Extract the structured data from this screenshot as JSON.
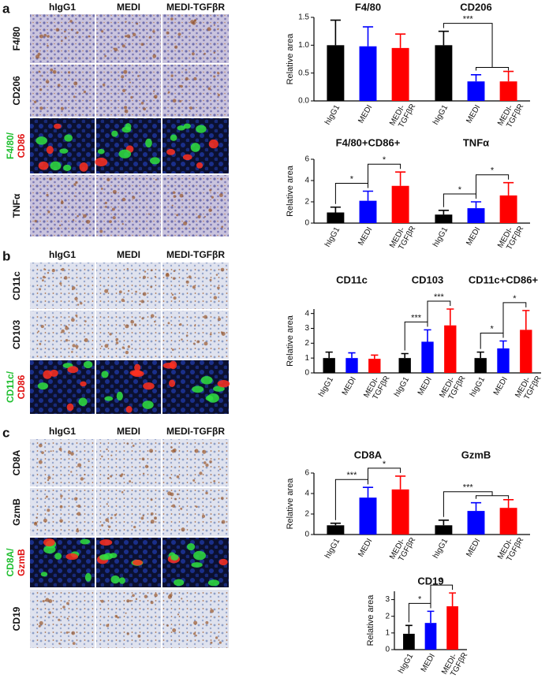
{
  "panels": [
    {
      "label": "a",
      "columns": [
        "hIgG1",
        "MEDI",
        "MEDI-TGFβR"
      ],
      "rows": [
        [
          "F4/80"
        ],
        [
          "CD206"
        ],
        [
          "F4/80/",
          "CD86"
        ],
        [
          "TNFα"
        ]
      ]
    },
    {
      "label": "b",
      "columns": [
        "hIgG1",
        "MEDI",
        "MEDI-TGFβR"
      ],
      "rows": [
        [
          "CD11c"
        ],
        [
          "CD103"
        ],
        [
          "CD11c/",
          "CD86"
        ]
      ]
    },
    {
      "label": "c",
      "columns": [
        "hIgG1",
        "MEDI",
        "MEDI-TGFβR"
      ],
      "rows": [
        [
          "CD8A"
        ],
        [
          "GzmB"
        ],
        [
          "CD8A/",
          "GzmB"
        ],
        [
          "CD19"
        ]
      ]
    }
  ],
  "chart_data": [
    {
      "type": "bar",
      "ylabel": "Relative area",
      "ylim": [
        0,
        1.5
      ],
      "yticks": [
        {
          "value": 0,
          "label": "0.0"
        },
        {
          "value": 0.5,
          "label": "0.5"
        },
        {
          "value": 1,
          "label": "1.0"
        },
        {
          "value": 1.5,
          "label": "1.5"
        }
      ],
      "categories": [
        "hIgG1",
        "MEDI",
        "MEDI-TGFβR"
      ],
      "colors": [
        "#000000",
        "#0000ff",
        "#ff0000"
      ],
      "groups": [
        {
          "title": "F4/80",
          "values": [
            1.0,
            0.98,
            0.95
          ],
          "errors": [
            0.45,
            0.35,
            0.25
          ],
          "annotations": []
        },
        {
          "title": "CD206",
          "values": [
            1.0,
            0.35,
            0.35
          ],
          "errors": [
            0.25,
            0.12,
            0.18
          ],
          "annotations": [
            {
              "label": "***",
              "from": 0,
              "to": [
                1,
                2
              ]
            }
          ]
        }
      ]
    },
    {
      "type": "bar",
      "ylabel": "Relative area",
      "ylim": [
        0,
        6
      ],
      "yticks": [
        0,
        2,
        4,
        6
      ],
      "categories": [
        "hIgG1",
        "MEDI",
        "MEDI-TGFβR"
      ],
      "colors": [
        "#000000",
        "#0000ff",
        "#ff0000"
      ],
      "groups": [
        {
          "title": "F4/80+CD86+",
          "values": [
            1.0,
            2.1,
            3.5
          ],
          "errors": [
            0.5,
            0.9,
            1.3
          ],
          "annotations": [
            {
              "label": "*",
              "from": 0,
              "to": 1
            },
            {
              "label": "*",
              "from": 1,
              "to": 2
            }
          ]
        },
        {
          "title": "TNFα",
          "values": [
            0.8,
            1.4,
            2.6
          ],
          "errors": [
            0.4,
            0.6,
            1.2
          ],
          "annotations": [
            {
              "label": "*",
              "from": 0,
              "to": 1
            },
            {
              "label": "*",
              "from": 1,
              "to": 2
            }
          ]
        }
      ]
    },
    {
      "type": "bar",
      "ylabel": "Relative area",
      "ylim": [
        0,
        4.3
      ],
      "yticks": [
        0,
        1,
        2,
        3,
        4
      ],
      "categories": [
        "hIgG1",
        "MEDI",
        "MEDI-TGFβR"
      ],
      "colors": [
        "#000000",
        "#0000ff",
        "#ff0000"
      ],
      "groups": [
        {
          "title": "CD11c",
          "values": [
            1.0,
            1.0,
            0.95
          ],
          "errors": [
            0.4,
            0.35,
            0.25
          ],
          "annotations": []
        },
        {
          "title": "CD103",
          "values": [
            1.0,
            2.1,
            3.2
          ],
          "errors": [
            0.3,
            0.8,
            1.1
          ],
          "annotations": [
            {
              "label": "***",
              "from": 0,
              "to": 1
            },
            {
              "label": "***",
              "from": 1,
              "to": 2
            }
          ]
        },
        {
          "title": "CD11c+CD86+",
          "values": [
            1.0,
            1.65,
            2.9
          ],
          "errors": [
            0.4,
            0.5,
            1.3
          ],
          "annotations": [
            {
              "label": "*",
              "from": 0,
              "to": 1
            },
            {
              "label": "*",
              "from": 1,
              "to": 2
            }
          ]
        }
      ]
    },
    {
      "type": "bar",
      "ylabel": "Relative area",
      "ylim": [
        0,
        6
      ],
      "yticks": [
        0,
        2,
        4,
        6
      ],
      "categories": [
        "hIgG1",
        "MEDI",
        "MEDI-TGFβR"
      ],
      "colors": [
        "#000000",
        "#0000ff",
        "#ff0000"
      ],
      "groups": [
        {
          "title": "CD8A",
          "values": [
            0.9,
            3.6,
            4.4
          ],
          "errors": [
            0.2,
            1.0,
            1.3
          ],
          "annotations": [
            {
              "label": "***",
              "from": 0,
              "to": 1
            },
            {
              "label": "*",
              "from": 1,
              "to": 2
            }
          ]
        },
        {
          "title": "GzmB",
          "values": [
            0.9,
            2.3,
            2.6
          ],
          "errors": [
            0.5,
            0.8,
            0.8
          ],
          "annotations": [
            {
              "label": "***",
              "from": 0,
              "to": [
                1,
                2
              ]
            }
          ]
        }
      ]
    },
    {
      "type": "bar",
      "ylabel": "Relative area",
      "ylim": [
        0,
        3.5
      ],
      "yticks": [
        0,
        1,
        2,
        3
      ],
      "categories": [
        "hIgG1",
        "MEDI",
        "MEDI-TGFβR"
      ],
      "colors": [
        "#000000",
        "#0000ff",
        "#ff0000"
      ],
      "groups": [
        {
          "title": "CD19",
          "values": [
            0.95,
            1.6,
            2.6
          ],
          "errors": [
            0.5,
            0.7,
            0.8
          ],
          "annotations": [
            {
              "label": "*",
              "from": 0,
              "to": 1
            },
            {
              "label": "*",
              "from": 1,
              "to": 2
            }
          ]
        }
      ]
    }
  ]
}
